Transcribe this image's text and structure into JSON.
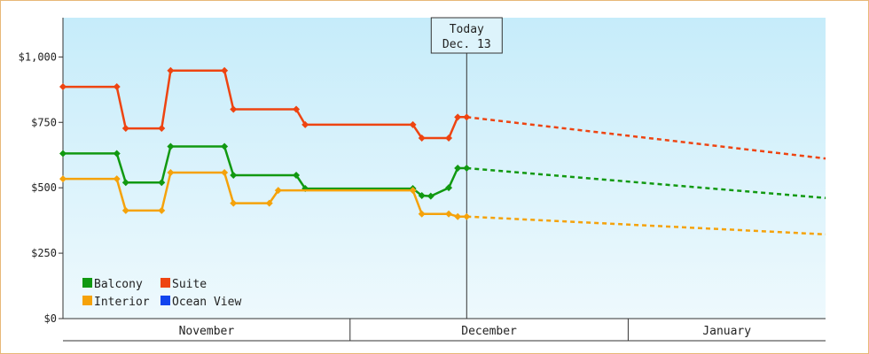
{
  "chart_data": {
    "type": "line",
    "y_axis": {
      "ylim": [
        0,
        1150
      ],
      "ticks": [
        {
          "value": 0,
          "label": "$0"
        },
        {
          "value": 250,
          "label": "$250"
        },
        {
          "value": 500,
          "label": "$500"
        },
        {
          "value": 750,
          "label": "$750"
        },
        {
          "value": 1000,
          "label": "$1,000"
        }
      ]
    },
    "x_axis": {
      "xlim": [
        "2024-10-29",
        "2025-01-22"
      ],
      "months": [
        {
          "label": "November",
          "start": "2024-10-29",
          "end": "2024-11-30"
        },
        {
          "label": "December",
          "start": "2024-11-30",
          "end": "2024-12-31"
        },
        {
          "label": "January",
          "start": "2024-12-31",
          "end": "2025-01-22"
        }
      ]
    },
    "today": {
      "title": "Today",
      "date_label": "Dec. 13",
      "date": "2024-12-13"
    },
    "legend": [
      {
        "label": "Balcony",
        "color": "#119911"
      },
      {
        "label": "Suite",
        "color": "#ee4411"
      },
      {
        "label": "Interior",
        "color": "#f5a20a"
      },
      {
        "label": "Ocean View",
        "color": "#1144ee"
      }
    ],
    "series": [
      {
        "name": "Suite",
        "color": "#ee4411",
        "points": [
          {
            "date": "2024-10-29",
            "value": 886
          },
          {
            "date": "2024-11-04",
            "value": 886
          },
          {
            "date": "2024-11-05",
            "value": 727
          },
          {
            "date": "2024-11-09",
            "value": 727
          },
          {
            "date": "2024-11-10",
            "value": 948
          },
          {
            "date": "2024-11-16",
            "value": 948
          },
          {
            "date": "2024-11-17",
            "value": 800
          },
          {
            "date": "2024-11-24",
            "value": 800
          },
          {
            "date": "2024-11-25",
            "value": 741
          },
          {
            "date": "2024-12-07",
            "value": 741
          },
          {
            "date": "2024-12-08",
            "value": 690
          },
          {
            "date": "2024-12-11",
            "value": 690
          },
          {
            "date": "2024-12-12",
            "value": 770
          },
          {
            "date": "2024-12-13",
            "value": 770
          }
        ],
        "forecast": [
          {
            "date": "2024-12-13",
            "value": 770
          },
          {
            "date": "2025-01-22",
            "value": 612
          }
        ]
      },
      {
        "name": "Balcony",
        "color": "#119911",
        "points": [
          {
            "date": "2024-10-29",
            "value": 631
          },
          {
            "date": "2024-11-04",
            "value": 631
          },
          {
            "date": "2024-11-05",
            "value": 520
          },
          {
            "date": "2024-11-09",
            "value": 520
          },
          {
            "date": "2024-11-10",
            "value": 658
          },
          {
            "date": "2024-11-16",
            "value": 658
          },
          {
            "date": "2024-11-17",
            "value": 548
          },
          {
            "date": "2024-11-24",
            "value": 548
          },
          {
            "date": "2024-11-25",
            "value": 497
          },
          {
            "date": "2024-12-07",
            "value": 497
          },
          {
            "date": "2024-12-08",
            "value": 470
          },
          {
            "date": "2024-12-09",
            "value": 468
          },
          {
            "date": "2024-12-11",
            "value": 500
          },
          {
            "date": "2024-12-12",
            "value": 575
          },
          {
            "date": "2024-12-13",
            "value": 575
          }
        ],
        "forecast": [
          {
            "date": "2024-12-13",
            "value": 575
          },
          {
            "date": "2025-01-22",
            "value": 461
          }
        ]
      },
      {
        "name": "Interior",
        "color": "#f5a20a",
        "points": [
          {
            "date": "2024-10-29",
            "value": 534
          },
          {
            "date": "2024-11-04",
            "value": 534
          },
          {
            "date": "2024-11-05",
            "value": 413
          },
          {
            "date": "2024-11-09",
            "value": 413
          },
          {
            "date": "2024-11-10",
            "value": 558
          },
          {
            "date": "2024-11-16",
            "value": 558
          },
          {
            "date": "2024-11-17",
            "value": 441
          },
          {
            "date": "2024-11-21",
            "value": 441
          },
          {
            "date": "2024-11-22",
            "value": 490
          },
          {
            "date": "2024-12-07",
            "value": 490
          },
          {
            "date": "2024-12-08",
            "value": 400
          },
          {
            "date": "2024-12-11",
            "value": 400
          },
          {
            "date": "2024-12-12",
            "value": 390
          },
          {
            "date": "2024-12-13",
            "value": 390
          }
        ],
        "forecast": [
          {
            "date": "2024-12-13",
            "value": 390
          },
          {
            "date": "2025-01-22",
            "value": 322
          }
        ]
      }
    ]
  }
}
